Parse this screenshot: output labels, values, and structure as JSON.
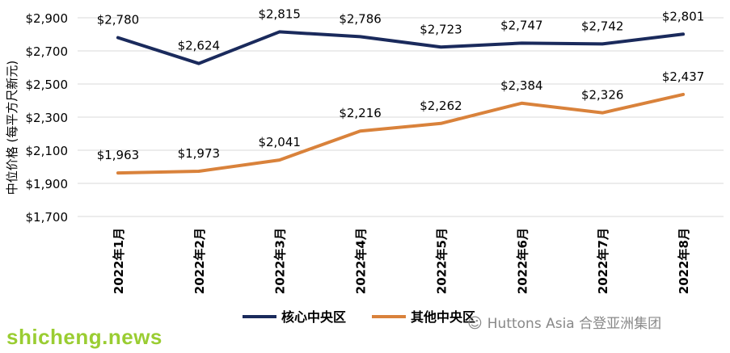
{
  "chart_data": {
    "type": "line",
    "title": "",
    "xlabel": "",
    "ylabel": "中位价格 (每平方尺新元)",
    "categories": [
      "2022年1月",
      "2022年2月",
      "2022年3月",
      "2022年4月",
      "2022年5月",
      "2022年6月",
      "2022年7月",
      "2022年8月"
    ],
    "ylim": [
      1700,
      2900
    ],
    "yticks": [
      1700,
      1900,
      2100,
      2300,
      2500,
      2700,
      2900
    ],
    "ytick_labels": [
      "$1,700",
      "$1,900",
      "$2,100",
      "$2,300",
      "$2,500",
      "$2,700",
      "$2,900"
    ],
    "grid": true,
    "legend_position": "bottom",
    "series": [
      {
        "name": "核心中央区",
        "color": "#1a2a5c",
        "values": [
          2780,
          2624,
          2815,
          2786,
          2723,
          2747,
          2742,
          2801
        ],
        "labels": [
          "$2,780",
          "$2,624",
          "$2,815",
          "$2,786",
          "$2,723",
          "$2,747",
          "$2,742",
          "$2,801"
        ]
      },
      {
        "name": "其他中央区",
        "color": "#d9823b",
        "values": [
          1963,
          1973,
          2041,
          2216,
          2262,
          2384,
          2326,
          2437
        ],
        "labels": [
          "$1,963",
          "$1,973",
          "$2,041",
          "$2,216",
          "$2,262",
          "$2,384",
          "$2,326",
          "$2,437"
        ]
      }
    ]
  },
  "watermark": {
    "site": "shicheng.news",
    "brand_icon": "wechat-icon",
    "brand": "Huttons Asia 合登亚洲集团"
  }
}
